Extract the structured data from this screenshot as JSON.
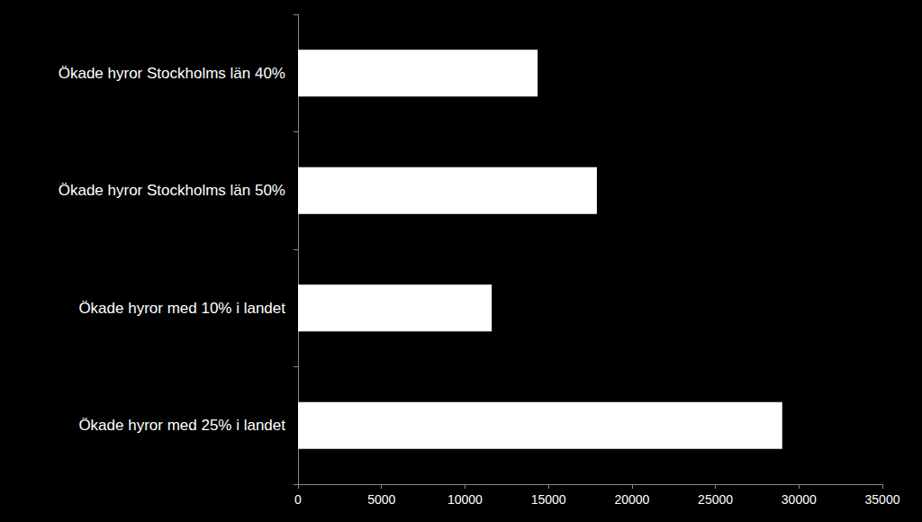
{
  "chart_data": {
    "type": "bar",
    "orientation": "horizontal",
    "categories": [
      "Ökade hyror Stockholms län 40%",
      "Ökade hyror Stockholms län 50%",
      "Ökade hyror med 10% i landet",
      "Ökade hyror med 25% i landet"
    ],
    "values": [
      14350,
      17900,
      11600,
      29000
    ],
    "color": "#ffffff",
    "xlim": [
      0,
      35000
    ],
    "xticks": [
      0,
      5000,
      10000,
      15000,
      20000,
      25000,
      30000,
      35000
    ],
    "grid": false
  }
}
